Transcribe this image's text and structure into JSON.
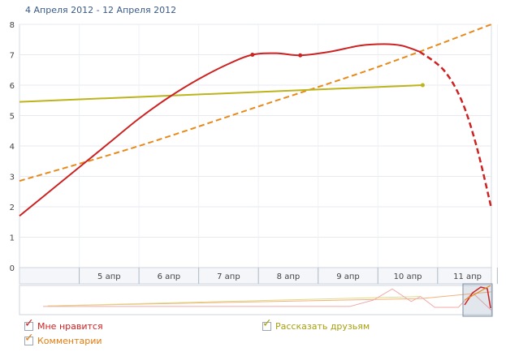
{
  "header": {
    "date_range": "4 Апреля 2012 - 12 Апреля 2012"
  },
  "chart_data": {
    "type": "line",
    "ylim": [
      0,
      8
    ],
    "yticks": [
      "0",
      "1",
      "2",
      "3",
      "4",
      "5",
      "6",
      "7",
      "8"
    ],
    "xlim": [
      3.5,
      11.4
    ],
    "xticks": [
      {
        "x": 5,
        "label": "5 апр"
      },
      {
        "x": 6,
        "label": "6 апр"
      },
      {
        "x": 7,
        "label": "7 апр"
      },
      {
        "x": 8,
        "label": "8 апр"
      },
      {
        "x": 9,
        "label": "9 апр"
      },
      {
        "x": 10,
        "label": "10 апр"
      },
      {
        "x": 11,
        "label": "11 апр"
      }
    ],
    "grid": true,
    "legend_position": "bottom",
    "series": [
      {
        "name": "Мне нравится",
        "color": "#cc2222",
        "points": [
          {
            "x": 3.5,
            "y": 1.7
          },
          {
            "x": 4.0,
            "y": 2.5
          },
          {
            "x": 4.5,
            "y": 3.3
          },
          {
            "x": 5.0,
            "y": 4.1
          },
          {
            "x": 5.5,
            "y": 4.9
          },
          {
            "x": 6.0,
            "y": 5.6
          },
          {
            "x": 6.5,
            "y": 6.2
          },
          {
            "x": 7.0,
            "y": 6.7
          },
          {
            "x": 7.4,
            "y": 7.0
          },
          {
            "x": 7.8,
            "y": 7.05
          },
          {
            "x": 8.2,
            "y": 6.98
          },
          {
            "x": 8.7,
            "y": 7.1
          },
          {
            "x": 9.2,
            "y": 7.3
          },
          {
            "x": 9.6,
            "y": 7.35
          },
          {
            "x": 9.9,
            "y": 7.3
          },
          {
            "x": 10.2,
            "y": 7.1
          }
        ],
        "forecast": [
          {
            "x": 10.2,
            "y": 7.1
          },
          {
            "x": 10.6,
            "y": 6.5
          },
          {
            "x": 10.9,
            "y": 5.5
          },
          {
            "x": 11.15,
            "y": 4.0
          },
          {
            "x": 11.4,
            "y": 1.95
          }
        ],
        "markers": [
          {
            "x": 7.4,
            "y": 7.0
          },
          {
            "x": 8.2,
            "y": 6.98
          }
        ]
      },
      {
        "name": "Комментарии",
        "color": "#e88a1a",
        "dashed": true,
        "points": [
          {
            "x": 3.5,
            "y": 2.85
          },
          {
            "x": 5.5,
            "y": 4.0
          },
          {
            "x": 7.5,
            "y": 5.3
          },
          {
            "x": 9.5,
            "y": 6.6
          },
          {
            "x": 11.4,
            "y": 8.0
          }
        ]
      },
      {
        "name": "Рассказать друзьям",
        "color": "#bdb31b",
        "points": [
          {
            "x": 3.5,
            "y": 5.45
          },
          {
            "x": 10.25,
            "y": 6.0
          }
        ],
        "markers": [
          {
            "x": 10.25,
            "y": 6.0
          }
        ]
      }
    ]
  }
}
